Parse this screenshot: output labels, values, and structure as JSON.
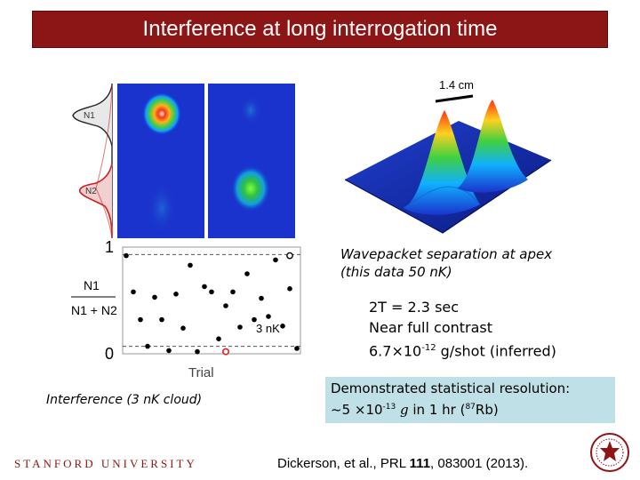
{
  "slide": {
    "title": "Interference at long interrogation time",
    "caption_wavepacket": "Wavepacket separation at apex  (this data 50 nK)",
    "params": {
      "line1": "2T = 2.3 sec",
      "line2": "Near full contrast",
      "line3_pre": "6.7×10",
      "line3_exp": "-12",
      "line3_post": " g/shot (inferred)"
    },
    "caption_interference": "Interference (3 nK cloud)",
    "highlight": {
      "line1": "Demonstrated statistical resolution:",
      "line2_pre": "~5 ×10",
      "line2_exp": "-13",
      "line2_g": " g",
      "line2_mid": " in 1 hr (",
      "line2_iso": "87",
      "line2_post": "Rb)"
    },
    "citation": {
      "pre": "Dickerson, et al., PRL ",
      "volume": "111",
      "post": ", 083001 (2013)."
    },
    "footer_university": "STANFORD UNIVERSITY"
  },
  "figure_labels": {
    "peak_separation": "1.4 cm",
    "n1": "N1",
    "n2": "N2",
    "y_top": "1",
    "y_bottom": "0",
    "y_num": "N1",
    "y_den": "N1 + N2",
    "temp": "3 nK",
    "x_axis": "Trial"
  },
  "chart_data": {
    "type": "scatter",
    "title": "",
    "xlabel": "Trial",
    "ylabel": "N1/(N1+N2)",
    "ylim": [
      0,
      1
    ],
    "series": [
      {
        "points": [
          [
            1,
            0.92
          ],
          [
            2,
            0.58
          ],
          [
            3,
            0.32
          ],
          [
            4,
            0.07
          ],
          [
            5,
            0.53
          ],
          [
            6,
            0.32
          ],
          [
            7,
            0.03
          ],
          [
            8,
            0.56
          ],
          [
            9,
            0.24
          ],
          [
            10,
            0.83
          ],
          [
            11,
            0.02
          ],
          [
            12,
            0.63
          ],
          [
            13,
            0.58
          ],
          [
            14,
            0.14
          ],
          [
            15,
            0.45
          ],
          [
            16,
            0.58
          ],
          [
            17,
            0.25
          ],
          [
            18,
            0.75
          ],
          [
            19,
            0.32
          ],
          [
            20,
            0.52
          ],
          [
            21,
            0.35
          ],
          [
            22,
            0.88
          ],
          [
            23,
            0.26
          ],
          [
            24,
            0.61
          ],
          [
            25,
            0.05
          ]
        ]
      },
      {
        "points": [
          [
            15,
            0.02
          ]
        ]
      },
      {
        "points": [
          [
            24,
            0.92
          ]
        ]
      }
    ],
    "colors": {
      "main": "#000000",
      "highlight_red": "#e02020",
      "highlight_open": "#ffffff"
    },
    "reference_lines": [
      0.93,
      0.07
    ]
  }
}
